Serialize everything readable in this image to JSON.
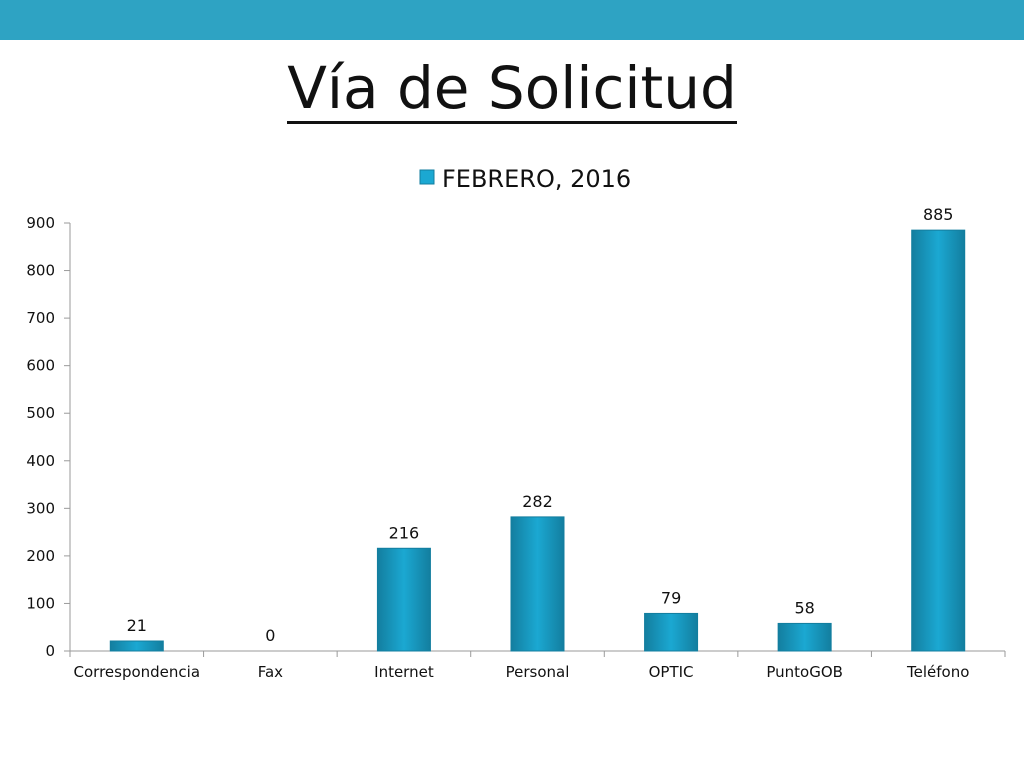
{
  "colors": {
    "top_bar": "#2ea3c3",
    "bar_fill": "#1ba8d2",
    "bar_dark": "#137e9f",
    "axis": "#9a9a9a"
  },
  "slide": {
    "title": "Vía de Solicitud"
  },
  "chart_data": {
    "type": "bar",
    "title": "",
    "xlabel": "",
    "ylabel": "",
    "categories": [
      "Correspondencia",
      "Fax",
      "Internet",
      "Personal",
      "OPTIC",
      "PuntoGOB",
      "Teléfono"
    ],
    "series": [
      {
        "name": "FEBRERO, 2016",
        "values": [
          21,
          0,
          216,
          282,
          79,
          58,
          885
        ]
      }
    ],
    "ylim": [
      0,
      900
    ],
    "yticks": [
      0,
      100,
      200,
      300,
      400,
      500,
      600,
      700,
      800,
      900
    ],
    "data_labels": true,
    "grid": false,
    "legend_position": "top-center"
  }
}
